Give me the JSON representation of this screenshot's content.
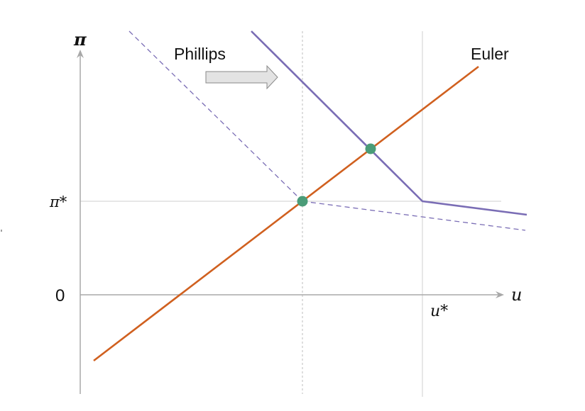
{
  "diagram": {
    "axes": {
      "y_axis_label": "π",
      "x_axis_label": "u",
      "origin_label": "0",
      "pi_star_label": "π*",
      "u_star_label": "u*"
    },
    "curves": {
      "phillips_label": "Phillips",
      "euler_label": "Euler"
    },
    "colors": {
      "euler": "#d0601f",
      "phillips": "#7a6db5",
      "marker": "#4a9c78",
      "axis": "#a8a8a8",
      "arrow_fill": "#e3e3e3",
      "arrow_stroke": "#8a8a8a"
    },
    "icons": {
      "shift_arrow": "right-arrow-icon",
      "intersection_marker": "circle-marker-icon"
    }
  }
}
